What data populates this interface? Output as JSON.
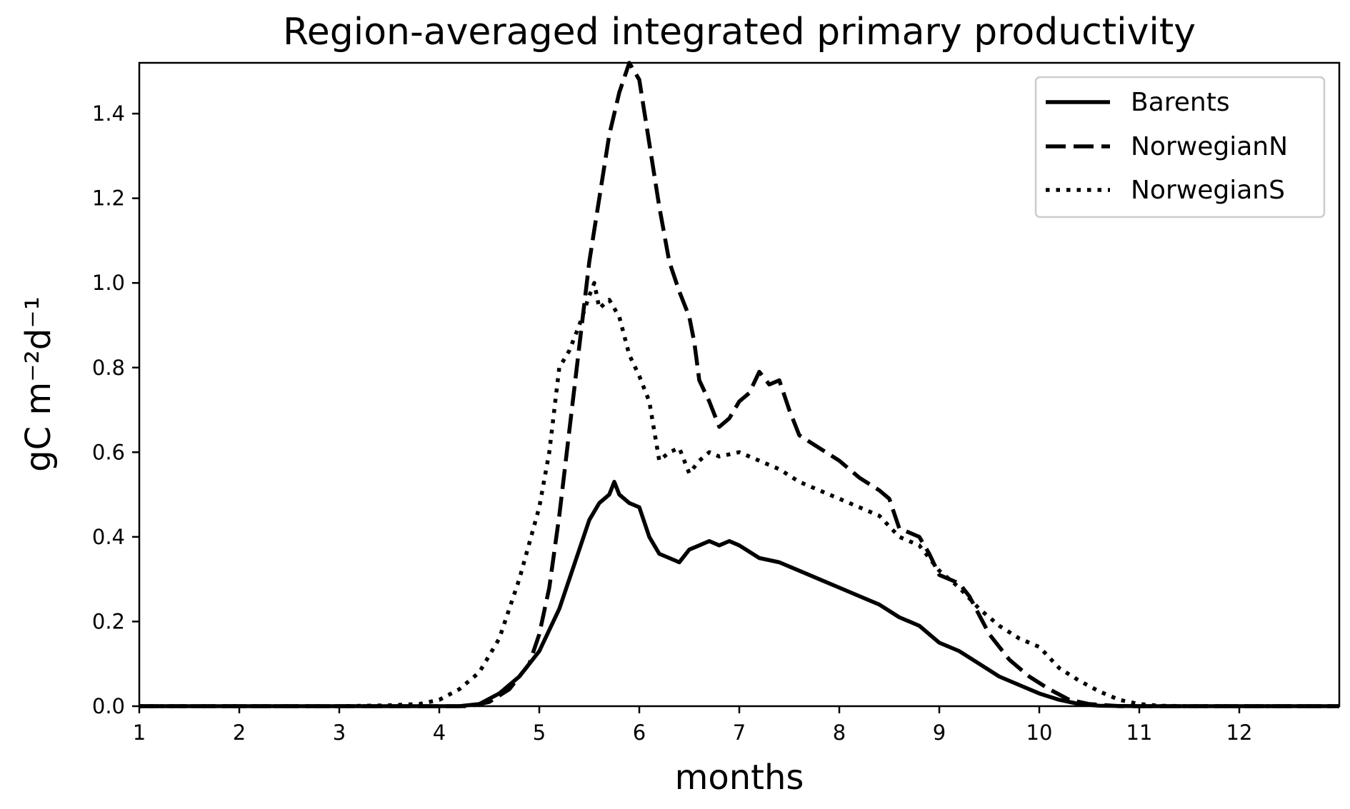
{
  "chart_data": {
    "type": "line",
    "title": "Region-averaged integrated primary productivity",
    "xlabel": "months",
    "ylabel": "gC m⁻²d⁻¹",
    "xlim": [
      1,
      13
    ],
    "ylim": [
      0,
      1.52
    ],
    "xticks": [
      1,
      2,
      3,
      4,
      5,
      6,
      7,
      8,
      9,
      10,
      11,
      12
    ],
    "yticks": [
      0.0,
      0.2,
      0.4,
      0.6,
      0.8,
      1.0,
      1.2,
      1.4
    ],
    "ytick_labels": [
      "0.0",
      "0.2",
      "0.4",
      "0.6",
      "0.8",
      "1.0",
      "1.2",
      "1.4"
    ],
    "grid": false,
    "legend_position": "top-right",
    "series": [
      {
        "name": "Barents",
        "style": "solid",
        "color": "#000000",
        "points": [
          [
            1,
            0
          ],
          [
            4.2,
            0
          ],
          [
            4.4,
            0.005
          ],
          [
            4.6,
            0.03
          ],
          [
            4.8,
            0.07
          ],
          [
            5.0,
            0.13
          ],
          [
            5.1,
            0.18
          ],
          [
            5.2,
            0.23
          ],
          [
            5.3,
            0.3
          ],
          [
            5.4,
            0.37
          ],
          [
            5.5,
            0.44
          ],
          [
            5.6,
            0.48
          ],
          [
            5.7,
            0.5
          ],
          [
            5.75,
            0.53
          ],
          [
            5.8,
            0.5
          ],
          [
            5.9,
            0.48
          ],
          [
            6.0,
            0.47
          ],
          [
            6.1,
            0.4
          ],
          [
            6.2,
            0.36
          ],
          [
            6.3,
            0.35
          ],
          [
            6.4,
            0.34
          ],
          [
            6.5,
            0.37
          ],
          [
            6.6,
            0.38
          ],
          [
            6.7,
            0.39
          ],
          [
            6.8,
            0.38
          ],
          [
            6.9,
            0.39
          ],
          [
            7.0,
            0.38
          ],
          [
            7.2,
            0.35
          ],
          [
            7.4,
            0.34
          ],
          [
            7.6,
            0.32
          ],
          [
            7.8,
            0.3
          ],
          [
            8.0,
            0.28
          ],
          [
            8.2,
            0.26
          ],
          [
            8.4,
            0.24
          ],
          [
            8.6,
            0.21
          ],
          [
            8.8,
            0.19
          ],
          [
            9.0,
            0.15
          ],
          [
            9.2,
            0.13
          ],
          [
            9.4,
            0.1
          ],
          [
            9.6,
            0.07
          ],
          [
            9.8,
            0.05
          ],
          [
            10.0,
            0.03
          ],
          [
            10.2,
            0.015
          ],
          [
            10.4,
            0.005
          ],
          [
            10.6,
            0.001
          ],
          [
            11.0,
            0
          ],
          [
            13.0,
            0
          ]
        ]
      },
      {
        "name": "NorwegianN",
        "style": "dashed",
        "color": "#000000",
        "points": [
          [
            1,
            0
          ],
          [
            4.3,
            0
          ],
          [
            4.5,
            0.01
          ],
          [
            4.7,
            0.04
          ],
          [
            4.9,
            0.1
          ],
          [
            5.0,
            0.17
          ],
          [
            5.1,
            0.28
          ],
          [
            5.2,
            0.45
          ],
          [
            5.3,
            0.65
          ],
          [
            5.4,
            0.85
          ],
          [
            5.5,
            1.05
          ],
          [
            5.6,
            1.2
          ],
          [
            5.7,
            1.35
          ],
          [
            5.8,
            1.45
          ],
          [
            5.9,
            1.52
          ],
          [
            6.0,
            1.48
          ],
          [
            6.1,
            1.33
          ],
          [
            6.2,
            1.18
          ],
          [
            6.3,
            1.05
          ],
          [
            6.4,
            0.98
          ],
          [
            6.5,
            0.92
          ],
          [
            6.55,
            0.86
          ],
          [
            6.6,
            0.77
          ],
          [
            6.7,
            0.72
          ],
          [
            6.8,
            0.66
          ],
          [
            6.9,
            0.68
          ],
          [
            7.0,
            0.72
          ],
          [
            7.1,
            0.74
          ],
          [
            7.2,
            0.79
          ],
          [
            7.3,
            0.76
          ],
          [
            7.4,
            0.77
          ],
          [
            7.5,
            0.7
          ],
          [
            7.6,
            0.64
          ],
          [
            7.8,
            0.61
          ],
          [
            8.0,
            0.58
          ],
          [
            8.2,
            0.54
          ],
          [
            8.4,
            0.51
          ],
          [
            8.5,
            0.49
          ],
          [
            8.6,
            0.42
          ],
          [
            8.8,
            0.4
          ],
          [
            8.9,
            0.36
          ],
          [
            9.0,
            0.31
          ],
          [
            9.2,
            0.29
          ],
          [
            9.3,
            0.26
          ],
          [
            9.5,
            0.17
          ],
          [
            9.7,
            0.11
          ],
          [
            9.9,
            0.07
          ],
          [
            10.1,
            0.04
          ],
          [
            10.3,
            0.015
          ],
          [
            10.5,
            0.005
          ],
          [
            10.8,
            0
          ],
          [
            13.0,
            0
          ]
        ]
      },
      {
        "name": "NorwegianS",
        "style": "dotted",
        "color": "#000000",
        "points": [
          [
            1,
            0
          ],
          [
            3.0,
            0
          ],
          [
            3.5,
            0.002
          ],
          [
            3.8,
            0.005
          ],
          [
            4.0,
            0.015
          ],
          [
            4.2,
            0.04
          ],
          [
            4.4,
            0.08
          ],
          [
            4.6,
            0.16
          ],
          [
            4.8,
            0.3
          ],
          [
            5.0,
            0.47
          ],
          [
            5.1,
            0.6
          ],
          [
            5.2,
            0.8
          ],
          [
            5.3,
            0.84
          ],
          [
            5.4,
            0.9
          ],
          [
            5.5,
            0.97
          ],
          [
            5.55,
            1.0
          ],
          [
            5.6,
            0.94
          ],
          [
            5.7,
            0.96
          ],
          [
            5.8,
            0.92
          ],
          [
            5.9,
            0.83
          ],
          [
            6.0,
            0.78
          ],
          [
            6.1,
            0.72
          ],
          [
            6.2,
            0.58
          ],
          [
            6.3,
            0.6
          ],
          [
            6.4,
            0.61
          ],
          [
            6.5,
            0.55
          ],
          [
            6.6,
            0.58
          ],
          [
            6.7,
            0.6
          ],
          [
            6.8,
            0.59
          ],
          [
            7.0,
            0.6
          ],
          [
            7.2,
            0.58
          ],
          [
            7.4,
            0.56
          ],
          [
            7.6,
            0.53
          ],
          [
            7.8,
            0.51
          ],
          [
            8.0,
            0.49
          ],
          [
            8.2,
            0.47
          ],
          [
            8.4,
            0.45
          ],
          [
            8.6,
            0.4
          ],
          [
            8.8,
            0.38
          ],
          [
            9.0,
            0.32
          ],
          [
            9.2,
            0.28
          ],
          [
            9.4,
            0.23
          ],
          [
            9.6,
            0.19
          ],
          [
            9.8,
            0.16
          ],
          [
            10.0,
            0.14
          ],
          [
            10.2,
            0.09
          ],
          [
            10.4,
            0.06
          ],
          [
            10.6,
            0.035
          ],
          [
            10.8,
            0.015
          ],
          [
            11.0,
            0.005
          ],
          [
            11.2,
            0.001
          ],
          [
            11.5,
            0
          ],
          [
            13.0,
            0
          ]
        ]
      }
    ]
  }
}
